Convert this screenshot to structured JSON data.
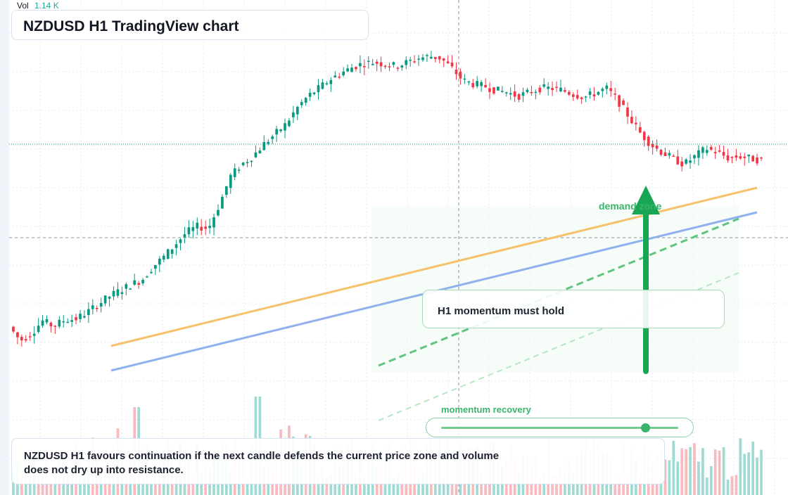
{
  "header": {
    "vol_label": "Vol",
    "vol_value": "1.14 K",
    "title": "NZDUSD H1 TradingView chart"
  },
  "annotations": {
    "zone_label": "demand zone",
    "callout": "H1 momentum must hold",
    "momentum_label": "momentum recovery",
    "momentum_level": 0.86,
    "summary": "NZDUSD H1 favours continuation if the next candle defends the current price zone and volume does not dry up into resistance."
  },
  "colors": {
    "bull": "#089981",
    "bear": "#f23645",
    "trend_orange": "#f5c26b",
    "trend_blue": "#8fb2ee",
    "accent_green": "#3bb36a",
    "arrow_green": "#18a654"
  },
  "icons": {
    "arrow": "up-arrow-icon"
  },
  "chart_data": {
    "type": "candlestick",
    "title": "NZDUSD H1 TradingView chart",
    "price_path": [
      0.255,
      0.22,
      0.238,
      0.27,
      0.256,
      0.272,
      0.274,
      0.29,
      0.31,
      0.33,
      0.345,
      0.36,
      0.372,
      0.405,
      0.43,
      0.46,
      0.49,
      0.505,
      0.5,
      0.56,
      0.63,
      0.66,
      0.68,
      0.71,
      0.735,
      0.76,
      0.8,
      0.83,
      0.85,
      0.872,
      0.888,
      0.902,
      0.912,
      0.915,
      0.91,
      0.905,
      0.915,
      0.925,
      0.93,
      0.925,
      0.9,
      0.87,
      0.86,
      0.855,
      0.845,
      0.84,
      0.83,
      0.84,
      0.85,
      0.85,
      0.845,
      0.835,
      0.828,
      0.838,
      0.85,
      0.82,
      0.78,
      0.74,
      0.71,
      0.69,
      0.675,
      0.66,
      0.68,
      0.7,
      0.69,
      0.676,
      0.68,
      0.675,
      0.67
    ],
    "volume_path": [
      0.2,
      0.25,
      0.3,
      0.35,
      0.3,
      0.4,
      0.55,
      0.35,
      0.3,
      0.28,
      0.32,
      0.3,
      0.35,
      0.33,
      0.3,
      0.35,
      0.55,
      0.6,
      0.4,
      0.35,
      0.3,
      0.33,
      0.3,
      0.28,
      0.3,
      0.35,
      0.3,
      0.32,
      0.3,
      0.34,
      0.3,
      0.28,
      0.31,
      0.36,
      0.3,
      0.3,
      0.32,
      0.3,
      0.3,
      0.28,
      0.3,
      0.32,
      0.28,
      0.3,
      0.3,
      0.3,
      0.32,
      0.3,
      0.3
    ],
    "grid": true
  }
}
